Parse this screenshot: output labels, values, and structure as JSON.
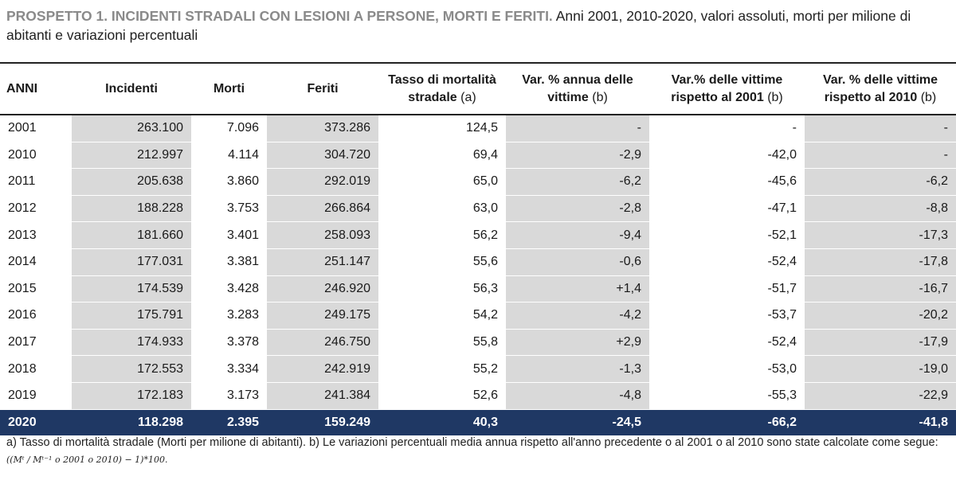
{
  "title": {
    "bold": "PROSPETTO 1. INCIDENTI STRADALI CON LESIONI A PERSONE, MORTI E FERITI.",
    "normal": " Anni 2001, 2010-2020, valori assoluti, morti per milione di abitanti e variazioni percentuali"
  },
  "columns": [
    {
      "label": "ANNI",
      "sub": ""
    },
    {
      "label": "Incidenti",
      "sub": ""
    },
    {
      "label": "Morti",
      "sub": ""
    },
    {
      "label": "Feriti",
      "sub": ""
    },
    {
      "label": "Tasso di mortalità stradale",
      "sub": "(a)"
    },
    {
      "label": "Var. % annua delle vittime",
      "sub": "(b)"
    },
    {
      "label": "Var.% delle vittime rispetto al 2001",
      "sub": "(b)"
    },
    {
      "label": "Var. % delle vittime rispetto al 2010",
      "sub": "(b)"
    }
  ],
  "rows": [
    [
      "2001",
      "263.100",
      "7.096",
      "373.286",
      "124,5",
      "-",
      "-",
      "-"
    ],
    [
      "2010",
      "212.997",
      "4.114",
      "304.720",
      "69,4",
      "-2,9",
      "-42,0",
      "-"
    ],
    [
      "2011",
      "205.638",
      "3.860",
      "292.019",
      "65,0",
      "-6,2",
      "-45,6",
      "-6,2"
    ],
    [
      "2012",
      "188.228",
      "3.753",
      "266.864",
      "63,0",
      "-2,8",
      "-47,1",
      "-8,8"
    ],
    [
      "2013",
      "181.660",
      "3.401",
      "258.093",
      "56,2",
      "-9,4",
      "-52,1",
      "-17,3"
    ],
    [
      "2014",
      "177.031",
      "3.381",
      "251.147",
      "55,6",
      "-0,6",
      "-52,4",
      "-17,8"
    ],
    [
      "2015",
      "174.539",
      "3.428",
      "246.920",
      "56,3",
      "+1,4",
      "-51,7",
      "-16,7"
    ],
    [
      "2016",
      "175.791",
      "3.283",
      "249.175",
      "54,2",
      "-4,2",
      "-53,7",
      "-20,2"
    ],
    [
      "2017",
      "174.933",
      "3.378",
      "246.750",
      "55,8",
      "+2,9",
      "-52,4",
      "-17,9"
    ],
    [
      "2018",
      "172.553",
      "3.334",
      "242.919",
      "55,2",
      "-1,3",
      "-53,0",
      "-19,0"
    ],
    [
      "2019",
      "172.183",
      "3.173",
      "241.384",
      "52,6",
      "-4,8",
      "-55,3",
      "-22,9"
    ],
    [
      "2020",
      "118.298",
      "2.395",
      "159.249",
      "40,3",
      "-24,5",
      "-66,2",
      "-41,8"
    ]
  ],
  "highlight_row_index": 11,
  "footnote": {
    "text": "a) Tasso di mortalità stradale (Morti per milione di abitanti). b) Le variazioni percentuali media annua rispetto all'anno precedente o al 2001 o al 2010 sono state calcolate come segue:",
    "formula": "((Mᵗ / Mᵗ⁻¹ o 2001 o 2010) − 1)*100."
  },
  "colors": {
    "shade": "#d9d9d9",
    "highlight": "#1f3864",
    "title_bold": "#8a8a8a"
  }
}
